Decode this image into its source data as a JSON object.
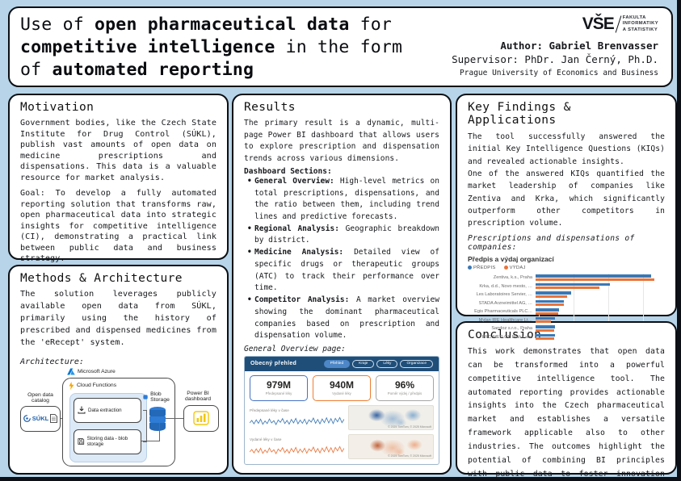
{
  "colors": {
    "background": "#b7d4e8",
    "panel_border": "#0c0f14",
    "dashboard_header": "#1f4e79",
    "series_blue": "#3b78b5",
    "series_orange": "#e8743b",
    "powerbi_yellow": "#f2c811",
    "azure_blue": "#0078d4",
    "sukl_blue": "#1f5fa8"
  },
  "header": {
    "title_segments": [
      {
        "text": "Use of ",
        "bold": false
      },
      {
        "text": "open pharmaceutical data",
        "bold": true
      },
      {
        "text": " for ",
        "bold": false
      },
      {
        "text": "competitive intelligence",
        "bold": true
      },
      {
        "text": " in the form of ",
        "bold": false
      },
      {
        "text": "automated reporting",
        "bold": true
      }
    ],
    "logo_text": "VŠE",
    "logo_faculty": [
      "FAKULTA",
      "INFORMATIKY",
      "A STATISTIKY"
    ],
    "author_line": "Author: Gabriel Brenvasser",
    "supervisor_line": "Supervisor: PhDr. Jan Černý, Ph.D.",
    "university_line": "Prague University of Economics and Business"
  },
  "motivation": {
    "heading": "Motivation",
    "para1": "Government bodies, like the Czech State Institute for Drug Control (SÚKL), publish vast amounts of open data on medicine prescriptions and dispensations. This data is a valuable resource for market analysis.",
    "para2": "Goal: To develop a fully automated reporting solution that transforms raw, open pharmaceutical data into strategic insights for competitive intelligence (CI), demonstrating a practical link between public data and business strategy."
  },
  "methods": {
    "heading": "Methods & Architecture",
    "para": "The solution leverages publicly available open data from SÚKL, primarily using the history of prescribed and dispensed medicines from the 'eRecept' system.",
    "architecture_label": "Architecture:",
    "diagram": {
      "azure_label": "Microsoft Azure",
      "open_data_catalog_label": "Open data catalog",
      "sukl_label": "SÚKL",
      "cloud_functions_label": "Cloud Functions",
      "data_extraction_label": "Data extraction",
      "storing_data_label": "Storing data - blob storage",
      "blob_storage_label": "Blob Storage",
      "powerbi_label": "Power BI dashboard"
    }
  },
  "results": {
    "heading": "Results",
    "intro": "The primary result is a dynamic, multi-page Power BI dashboard that allows users to explore prescription and dispensation trends across various dimensions.",
    "sections_label": "Dashboard Sections:",
    "bullets": [
      {
        "label": "General Overview:",
        "text": "High-level metrics on total prescriptions, dispensations, and the ratio between them, including trend lines and predictive forecasts."
      },
      {
        "label": "Regional Analysis:",
        "text": "Geographic breakdown by district."
      },
      {
        "label": "Medicine Analysis:",
        "text": "Detailed view of specific drugs or therapeutic groups (ATC) to track their performance over time."
      },
      {
        "label": "Competitor Analysis:",
        "text": "A market overview showing the dominant pharmaceutical companies based on prescription and dispensation volume."
      }
    ],
    "overview_label": "General Overview page:",
    "dashboard": {
      "title": "Obecný přehled",
      "nav_pills": [
        "Přehled",
        "Kraje",
        "Léky",
        "Organizace"
      ],
      "kpis": [
        {
          "value": "979M",
          "caption": "Předepsané léky",
          "border_color": "#4472c4"
        },
        {
          "value": "940M",
          "caption": "Vydané léky",
          "border_color": "#ed7d31"
        },
        {
          "value": "96%",
          "caption": "Poměr výdej / předpis",
          "border_color": "#a6a6a6"
        }
      ],
      "row1_label": "Předepsané léky v čase",
      "row2_label": "Vydané léky v čase",
      "map_attribution": "© 2025 TomTom, © 2025 Microsoft",
      "sparkline": [
        0.45,
        0.62,
        0.38,
        0.66,
        0.42,
        0.7,
        0.35,
        0.58,
        0.4,
        0.72,
        0.44,
        0.6,
        0.33,
        0.65,
        0.48,
        0.74,
        0.4,
        0.62,
        0.36,
        0.68,
        0.45,
        0.76,
        0.38,
        0.64,
        0.42,
        0.7,
        0.36,
        0.66,
        0.5,
        0.78,
        0.42,
        0.68,
        0.38,
        0.72,
        0.46,
        0.8,
        0.44,
        0.74,
        0.4,
        0.76,
        0.52,
        0.82,
        0.46,
        0.7
      ]
    }
  },
  "findings": {
    "heading": "Key Findings & Applications",
    "para1": "The tool successfully answered the initial Key Intelligence Questions (KIQs) and revealed actionable insights.",
    "para2": "One of the answered KIQs quantified the market leadership of companies like Zentiva and Krka, which significantly outperform other competitors in prescription volume.",
    "chart_label": "Prescriptions and dispensations of companies:"
  },
  "conclusion": {
    "heading": "Conclusion",
    "para": "This work demonstrates that open data can be transformed into a powerful competitive intelligence tool. The automated reporting provides actionable insights into the Czech pharmaceutical market and establishes a versatile framework applicable also to other industries. The outcomes highlight the potential of combining BI principles with public data to foster innovation and enhance strategic decision-making."
  },
  "chart_data": {
    "type": "bar",
    "orientation": "horizontal",
    "title": "Předpis a výdaj organizací",
    "categories": [
      "Zentiva, k.s., Praha",
      "Krka, d.d., Novo mesto, …",
      "Les Laboratoires Servier, …",
      "STADA Arzneimittel AG, …",
      "Egis Pharmaceuticals PLC…",
      "Mylan IRE Healthcare Lt…",
      "Sandoz s.r.o., Praha",
      "PRO.MED.CS Praha a.s."
    ],
    "series": [
      {
        "name": "PŘEDPIS",
        "color": "#3b78b5",
        "values": [
          65,
          42,
          20,
          16,
          13,
          11,
          11,
          11
        ]
      },
      {
        "name": "VÝDAJ",
        "color": "#e8743b",
        "values": [
          67,
          36,
          17.5,
          16,
          12.5,
          8.5,
          10.5,
          10.5
        ]
      }
    ],
    "xlabel": "",
    "ylabel": "",
    "xlim": [
      0,
      70
    ],
    "xticks": [
      "0M",
      "20M",
      "40M",
      "60M"
    ],
    "xtick_values": [
      0,
      20,
      40,
      60
    ],
    "grid": true,
    "legend_position": "top"
  }
}
